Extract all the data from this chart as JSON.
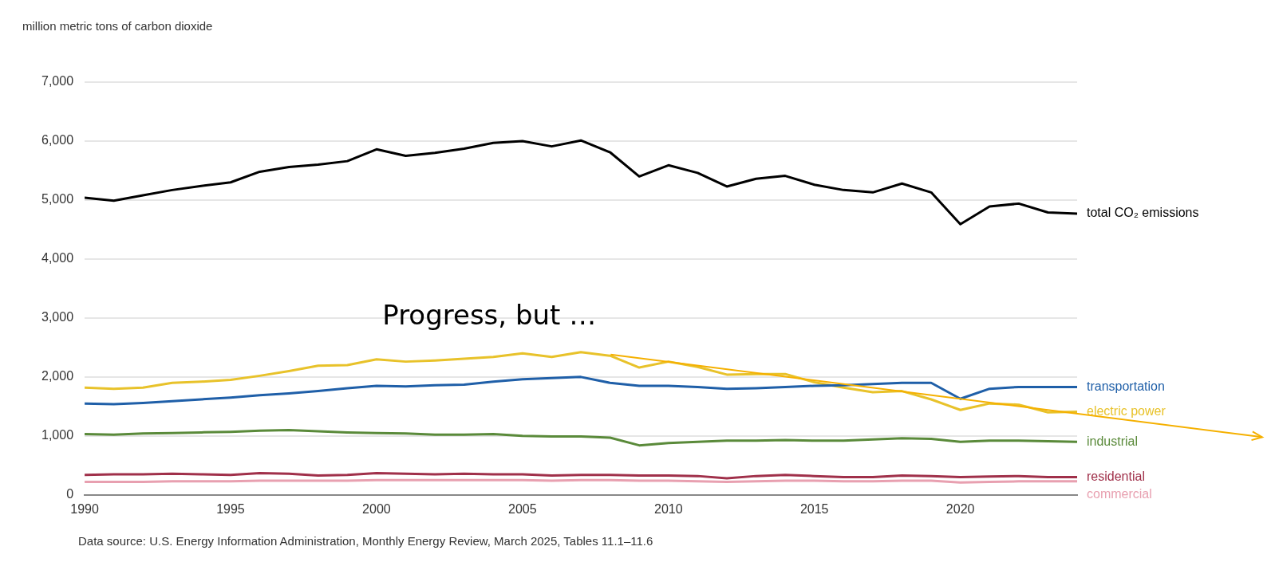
{
  "chart_data": {
    "type": "line",
    "ylabel": "million metric tons of carbon dioxide",
    "x": [
      1990,
      1991,
      1992,
      1993,
      1994,
      1995,
      1996,
      1997,
      1998,
      1999,
      2000,
      2001,
      2002,
      2003,
      2004,
      2005,
      2006,
      2007,
      2008,
      2009,
      2010,
      2011,
      2012,
      2013,
      2014,
      2015,
      2016,
      2017,
      2018,
      2019,
      2020,
      2021,
      2022,
      2023,
      2024
    ],
    "series": [
      {
        "name": "total CO₂ emissions",
        "color": "#000000",
        "values": [
          5040,
          4990,
          5080,
          5170,
          5240,
          5300,
          5480,
          5560,
          5600,
          5660,
          5860,
          5750,
          5800,
          5870,
          5970,
          6000,
          5910,
          6010,
          5810,
          5400,
          5590,
          5460,
          5230,
          5360,
          5410,
          5260,
          5170,
          5130,
          5280,
          5130,
          4590,
          4890,
          4940,
          4790,
          4770
        ]
      },
      {
        "name": "transportation",
        "color": "#1f5fa8",
        "values": [
          1550,
          1540,
          1560,
          1590,
          1620,
          1650,
          1690,
          1720,
          1760,
          1810,
          1850,
          1840,
          1860,
          1870,
          1920,
          1960,
          1980,
          2000,
          1900,
          1850,
          1850,
          1830,
          1800,
          1810,
          1830,
          1850,
          1860,
          1880,
          1900,
          1900,
          1630,
          1800,
          1830,
          1830,
          1830
        ]
      },
      {
        "name": "electric power",
        "color": "#e8c22a",
        "values": [
          1820,
          1800,
          1820,
          1900,
          1920,
          1950,
          2020,
          2100,
          2190,
          2200,
          2300,
          2260,
          2280,
          2310,
          2340,
          2400,
          2340,
          2420,
          2360,
          2160,
          2260,
          2170,
          2040,
          2050,
          2050,
          1910,
          1820,
          1740,
          1760,
          1620,
          1440,
          1550,
          1530,
          1400,
          1410
        ]
      },
      {
        "name": "industrial",
        "color": "#5a8a3a",
        "values": [
          1030,
          1020,
          1040,
          1050,
          1060,
          1070,
          1090,
          1100,
          1080,
          1060,
          1050,
          1040,
          1020,
          1020,
          1030,
          1000,
          990,
          990,
          970,
          840,
          880,
          900,
          920,
          920,
          930,
          920,
          920,
          940,
          960,
          950,
          900,
          920,
          920,
          910,
          900
        ]
      },
      {
        "name": "residential",
        "color": "#a0304a",
        "values": [
          340,
          350,
          350,
          360,
          350,
          340,
          370,
          360,
          330,
          340,
          370,
          360,
          350,
          360,
          350,
          350,
          330,
          340,
          340,
          330,
          330,
          320,
          280,
          320,
          340,
          320,
          300,
          300,
          330,
          320,
          300,
          310,
          320,
          300,
          300
        ]
      },
      {
        "name": "commercial",
        "color": "#e8a0b0",
        "values": [
          220,
          220,
          220,
          230,
          230,
          230,
          240,
          240,
          240,
          240,
          250,
          250,
          250,
          250,
          250,
          250,
          240,
          250,
          250,
          240,
          240,
          230,
          220,
          230,
          240,
          240,
          230,
          230,
          240,
          240,
          210,
          220,
          230,
          230,
          230
        ]
      }
    ],
    "xlim": [
      1990,
      2024
    ],
    "xticks": [
      1990,
      1995,
      2000,
      2005,
      2010,
      2015,
      2020
    ],
    "ylim": [
      0,
      7000
    ],
    "yticks": [
      0,
      {
        "value": 1000,
        "label": "1,000"
      },
      {
        "value": 2000,
        "label": "2,000"
      },
      {
        "value": 3000,
        "label": "3,000"
      },
      {
        "value": 4000,
        "label": "4,000"
      },
      {
        "value": 5000,
        "label": "5,000"
      },
      {
        "value": 6000,
        "label": "6,000"
      },
      {
        "value": 7000,
        "label": "7,000"
      }
    ],
    "grid": "y",
    "legend": false,
    "marker": "none",
    "line_style": "solid",
    "annotations": [
      "Progress, but …",
      "Data source: U.S. Energy Information Administration, Monthly Energy Review, March 2025, Tables 11.1–11.6"
    ]
  }
}
